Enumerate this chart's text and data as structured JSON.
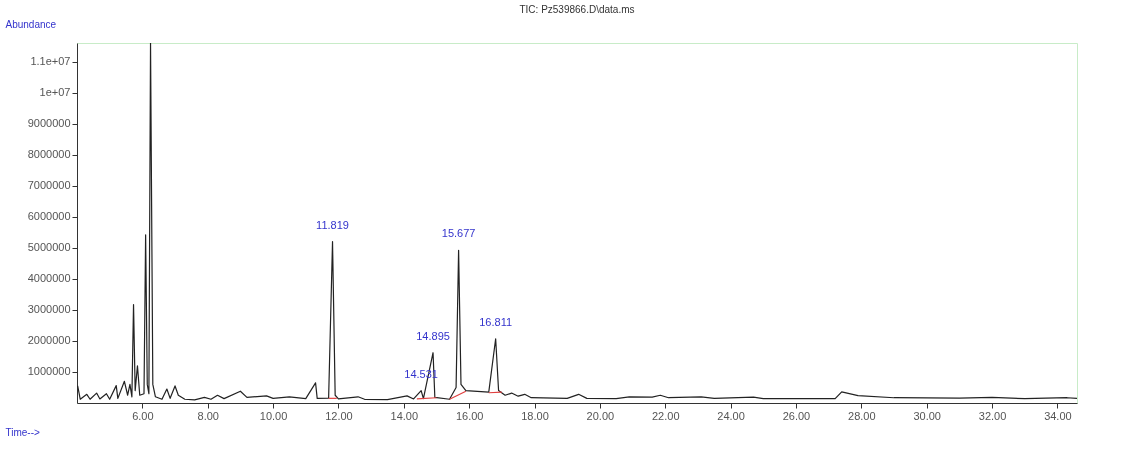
{
  "chart_data": {
    "type": "line",
    "title": "TIC: Pz539866.D\\data.ms",
    "xlabel": "Time-->",
    "ylabel": "Abundance",
    "xlim": [
      4.0,
      34.6
    ],
    "ylim": [
      0,
      11600000
    ],
    "xticks": [
      {
        "value": 6,
        "label": "6.00"
      },
      {
        "value": 8,
        "label": "8.00"
      },
      {
        "value": 10,
        "label": "10.00"
      },
      {
        "value": 12,
        "label": "12.00"
      },
      {
        "value": 14,
        "label": "14.00"
      },
      {
        "value": 16,
        "label": "16.00"
      },
      {
        "value": 18,
        "label": "18.00"
      },
      {
        "value": 20,
        "label": "20.00"
      },
      {
        "value": 22,
        "label": "22.00"
      },
      {
        "value": 24,
        "label": "24.00"
      },
      {
        "value": 26,
        "label": "26.00"
      },
      {
        "value": 28,
        "label": "28.00"
      },
      {
        "value": 30,
        "label": "30.00"
      },
      {
        "value": 32,
        "label": "32.00"
      },
      {
        "value": 34,
        "label": "34.00"
      }
    ],
    "yticks": [
      1000000,
      2000000,
      3000000,
      4000000,
      5000000,
      6000000,
      7000000,
      8000000,
      9000000,
      {
        "value": 10000000,
        "label": "1e+07"
      },
      {
        "value": 11000000,
        "label": "1.1e+07"
      }
    ],
    "grid": false,
    "marker": "none",
    "line_style": "solid",
    "series": [
      {
        "color": "#222222",
        "x": [
          4.02,
          4.1,
          4.3,
          4.4,
          4.6,
          4.7,
          4.9,
          5.0,
          5.2,
          5.25,
          5.45,
          5.55,
          5.62,
          5.68,
          5.73,
          5.78,
          5.85,
          5.92,
          6.05,
          6.1,
          6.15,
          6.2,
          6.25,
          6.32,
          6.4,
          6.6,
          6.75,
          6.85,
          7.0,
          7.1,
          7.3,
          7.6,
          7.9,
          8.1,
          8.3,
          8.5,
          9.0,
          9.2,
          9.8,
          10.0,
          10.5,
          11.0,
          11.3,
          11.35,
          11.7,
          11.819,
          11.9,
          12.0,
          12.6,
          12.8,
          13.5,
          14.1,
          14.3,
          14.531,
          14.6,
          14.895,
          14.95,
          15.4,
          15.6,
          15.677,
          15.75,
          15.9,
          16.6,
          16.811,
          16.9,
          17.1,
          17.3,
          17.5,
          17.7,
          17.9,
          19.0,
          19.35,
          19.6,
          20.5,
          20.9,
          21.6,
          21.85,
          22.1,
          23.1,
          23.5,
          24.7,
          25.0,
          27.2,
          27.4,
          27.9,
          29.0,
          31.0,
          32.0,
          33.0,
          34.3,
          34.6
        ],
        "values": [
          550000,
          120000,
          280000,
          120000,
          320000,
          130000,
          300000,
          120000,
          560000,
          150000,
          700000,
          250000,
          600000,
          200000,
          3170000,
          400000,
          1200000,
          250000,
          300000,
          5420000,
          600000,
          300000,
          11600000,
          600000,
          200000,
          120000,
          450000,
          150000,
          550000,
          250000,
          120000,
          100000,
          180000,
          120000,
          250000,
          140000,
          380000,
          180000,
          230000,
          150000,
          200000,
          140000,
          650000,
          150000,
          160000,
          5200000,
          250000,
          130000,
          200000,
          120000,
          110000,
          230000,
          130000,
          400000,
          140000,
          1620000,
          180000,
          120000,
          500000,
          4920000,
          600000,
          400000,
          350000,
          2070000,
          400000,
          250000,
          320000,
          220000,
          280000,
          170000,
          150000,
          280000,
          150000,
          140000,
          200000,
          190000,
          250000,
          170000,
          200000,
          150000,
          190000,
          140000,
          140000,
          360000,
          240000,
          170000,
          160000,
          180000,
          140000,
          170000,
          150000
        ]
      },
      {
        "color": "#e04040",
        "x": [
          11.7,
          11.95,
          12.0,
          14.4,
          15.0,
          15.1,
          15.4,
          15.9,
          16.0,
          16.6,
          17.0
        ],
        "values": [
          150000,
          150000,
          null,
          130000,
          170000,
          null,
          120000,
          380000,
          null,
          330000,
          350000
        ]
      }
    ],
    "annotations": [
      {
        "text": "11.819",
        "x": 11.819,
        "y": 5200000
      },
      {
        "text": "14.531",
        "x": 14.531,
        "y": 400000
      },
      {
        "text": "14.895",
        "x": 14.895,
        "y": 1620000
      },
      {
        "text": "15.677",
        "x": 15.677,
        "y": 4920000
      },
      {
        "text": "16.811",
        "x": 16.811,
        "y": 2070000
      }
    ]
  }
}
